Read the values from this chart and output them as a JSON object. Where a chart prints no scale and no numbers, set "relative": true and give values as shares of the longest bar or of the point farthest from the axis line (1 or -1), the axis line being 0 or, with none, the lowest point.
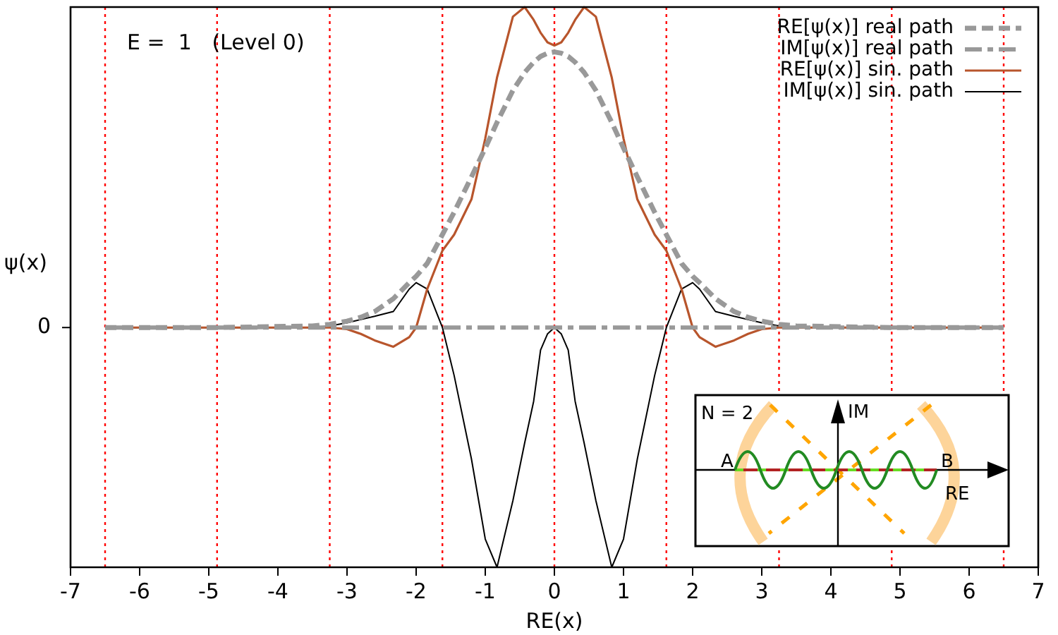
{
  "chart_data": {
    "type": "line",
    "relative": true,
    "xlabel": "RE(x)",
    "ylabel": "ψ(x)",
    "xlim": [
      -7,
      7
    ],
    "xticks": [
      -7,
      -6,
      -5,
      -4,
      -3,
      -2,
      -1,
      0,
      1,
      2,
      3,
      4,
      5,
      6,
      7
    ],
    "x": [
      -6.5,
      -4.88,
      -3.5,
      -3.25,
      -3,
      -2.8,
      -2.6,
      -2.33,
      -2.1,
      -2,
      -1.84,
      -1.62,
      -1.45,
      -1.2,
      -1,
      -0.83,
      -0.6,
      -0.43,
      -0.3,
      -0.2,
      -0.1,
      0,
      0.1,
      0.2,
      0.3,
      0.43,
      0.6,
      0.83,
      1,
      1.2,
      1.45,
      1.62,
      1.84,
      2,
      2.1,
      2.33,
      2.6,
      2.8,
      3,
      3.25,
      3.5,
      4.88,
      6.5
    ],
    "series": [
      {
        "name": "RE[ψ(x)] real path",
        "color": "#999999",
        "line_style": "dashed",
        "values": [
          0,
          0,
          0.005,
          0.01,
          0.02,
          0.032,
          0.05,
          0.09,
          0.14,
          0.16,
          0.2,
          0.29,
          0.36,
          0.47,
          0.56,
          0.64,
          0.74,
          0.796,
          0.828,
          0.846,
          0.856,
          0.86,
          0.856,
          0.846,
          0.828,
          0.796,
          0.74,
          0.64,
          0.56,
          0.47,
          0.36,
          0.29,
          0.2,
          0.16,
          0.14,
          0.09,
          0.05,
          0.032,
          0.02,
          0.01,
          0.005,
          0,
          0
        ]
      },
      {
        "name": "IM[ψ(x)] real path",
        "color": "#999999",
        "line_style": "dashdot",
        "x": [
          -6.5,
          6.5
        ],
        "values": [
          0,
          0
        ]
      },
      {
        "name": "RE[ψ(x)] sin. path",
        "color": "#b8552c",
        "line_style": "solid",
        "values": [
          0,
          0,
          0,
          0,
          -0.005,
          -0.02,
          -0.04,
          -0.06,
          -0.03,
          0,
          0.12,
          0.24,
          0.29,
          0.4,
          0.59,
          0.78,
          0.97,
          1,
          0.96,
          0.92,
          0.89,
          0.88,
          0.89,
          0.92,
          0.96,
          1,
          0.97,
          0.78,
          0.59,
          0.4,
          0.29,
          0.24,
          0.12,
          0,
          -0.03,
          -0.06,
          -0.04,
          -0.02,
          -0.005,
          0,
          0,
          0,
          0
        ]
      },
      {
        "name": "IM[ψ(x)] sin. path",
        "color": "#000000",
        "line_style": "solid",
        "values": [
          0,
          0,
          0,
          0.005,
          0.015,
          0.025,
          0.035,
          0.05,
          0.12,
          0.14,
          0.12,
          0,
          -0.15,
          -0.41,
          -0.66,
          -0.748,
          -0.54,
          -0.36,
          -0.23,
          -0.07,
          -0.02,
          0,
          -0.02,
          -0.07,
          -0.23,
          -0.36,
          -0.54,
          -0.748,
          -0.66,
          -0.41,
          -0.15,
          0,
          0.12,
          0.14,
          0.12,
          0.05,
          0.035,
          0.025,
          0.015,
          0.005,
          0,
          0,
          0
        ]
      }
    ],
    "ref_lines": [
      {
        "axis": "x",
        "value": -6.5,
        "color": "#ff0000",
        "line_style": "dotted"
      },
      {
        "axis": "x",
        "value": -4.88,
        "color": "#ff0000",
        "line_style": "dotted"
      },
      {
        "axis": "x",
        "value": -3.25,
        "color": "#ff0000",
        "line_style": "dotted"
      },
      {
        "axis": "x",
        "value": -1.62,
        "color": "#ff0000",
        "line_style": "dotted"
      },
      {
        "axis": "x",
        "value": 0,
        "color": "#ff0000",
        "line_style": "dotted"
      },
      {
        "axis": "x",
        "value": 1.62,
        "color": "#ff0000",
        "line_style": "dotted"
      },
      {
        "axis": "x",
        "value": 3.25,
        "color": "#ff0000",
        "line_style": "dotted"
      },
      {
        "axis": "x",
        "value": 4.88,
        "color": "#ff0000",
        "line_style": "dotted"
      },
      {
        "axis": "x",
        "value": 6.5,
        "color": "#ff0000",
        "line_style": "dotted"
      }
    ],
    "annotations": [
      "E =  1   (Level 0)",
      "N =  2",
      "IM",
      "RE",
      "A",
      "B",
      "0"
    ],
    "legend": "top right",
    "grid": false,
    "marker": "none"
  }
}
